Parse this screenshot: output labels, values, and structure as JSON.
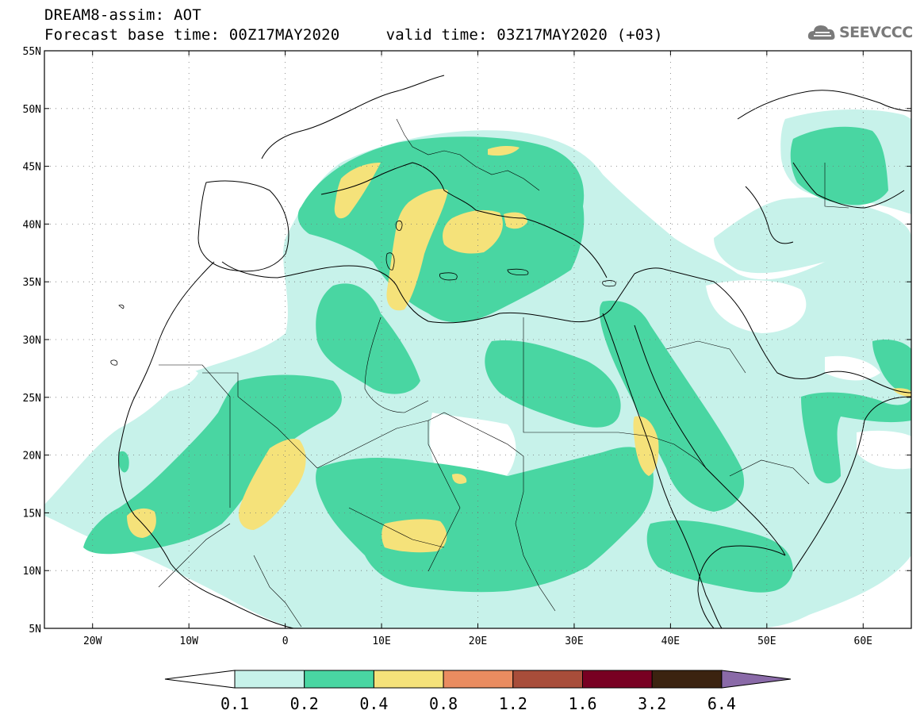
{
  "header": {
    "title_line1": "DREAM8-assim: AOT",
    "title_line2": "Forecast base time: 00Z17MAY2020     valid time: 03Z17MAY2020 (+03)",
    "logo_text": "SEEVCCC",
    "logo_icon": "cloud-icon"
  },
  "map": {
    "lon_range": [
      -25,
      65
    ],
    "lat_range": [
      5,
      55
    ],
    "lat_ticks": [
      {
        "value": 55,
        "label": "55N"
      },
      {
        "value": 50,
        "label": "50N"
      },
      {
        "value": 45,
        "label": "45N"
      },
      {
        "value": 40,
        "label": "40N"
      },
      {
        "value": 35,
        "label": "35N"
      },
      {
        "value": 30,
        "label": "30N"
      },
      {
        "value": 25,
        "label": "25N"
      },
      {
        "value": 20,
        "label": "20N"
      },
      {
        "value": 15,
        "label": "15N"
      },
      {
        "value": 10,
        "label": "10N"
      },
      {
        "value": 5,
        "label": "5N"
      }
    ],
    "lon_ticks": [
      {
        "value": -20,
        "label": "20W"
      },
      {
        "value": -10,
        "label": "10W"
      },
      {
        "value": 0,
        "label": "0"
      },
      {
        "value": 10,
        "label": "10E"
      },
      {
        "value": 20,
        "label": "20E"
      },
      {
        "value": 30,
        "label": "30E"
      },
      {
        "value": 40,
        "label": "40E"
      },
      {
        "value": 50,
        "label": "50E"
      },
      {
        "value": 60,
        "label": "60E"
      }
    ],
    "grid": "dotted"
  },
  "colorbar": {
    "labels": [
      "0.1",
      "0.2",
      "0.4",
      "0.8",
      "1.2",
      "1.6",
      "3.2",
      "6.4"
    ],
    "colors": [
      "#ffffff",
      "#c7f2ea",
      "#49d6a2",
      "#f5e27a",
      "#ea8c60",
      "#a84d3a",
      "#780022",
      "#3b2310",
      "#8a6aa8"
    ],
    "extend": "both"
  }
}
